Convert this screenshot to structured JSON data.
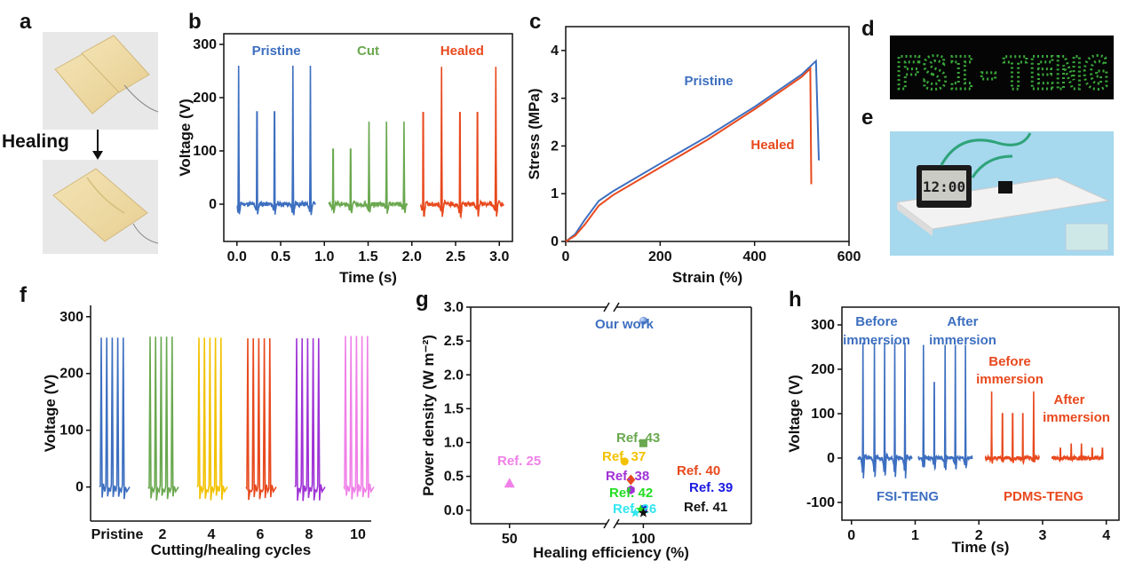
{
  "panels": {
    "a": "a",
    "b": "b",
    "c": "c",
    "d": "d",
    "e": "e",
    "f": "f",
    "g": "g",
    "h": "h"
  },
  "photos": {
    "a_arrow_label": "Healing",
    "d_display_text": "FSI-TENG",
    "d_led_color": "#3aa63a",
    "e_clock_text": "12:00"
  },
  "colors": {
    "blue": "#3d6fc0",
    "green": "#6aa84f",
    "red": "#e8491d",
    "orange": "#e8491d",
    "yellow": "#f2c200",
    "purple": "#a033d6",
    "pink": "#f080e8"
  },
  "chart_data": [
    {
      "id": "b",
      "type": "line",
      "xlabel": "Time (s)",
      "ylabel": "Voltage (V)",
      "xlim": [
        -0.15,
        3.15
      ],
      "ylim": [
        -70,
        320
      ],
      "xticks": [
        "0.0",
        "0.5",
        "1.0",
        "1.5",
        "2.0",
        "2.5",
        "3.0"
      ],
      "xtick_values": [
        0,
        0.5,
        1,
        1.5,
        2,
        2.5,
        3
      ],
      "yticks": [
        "0",
        "100",
        "200",
        "300"
      ],
      "ytick_values": [
        0,
        100,
        200,
        300
      ],
      "series": [
        {
          "name": "Pristine",
          "color": "#3d6fc0",
          "x_range": [
            0,
            0.9
          ],
          "peaks": [
            0.02,
            0.23,
            0.43,
            0.64,
            0.84
          ],
          "peak_value": 260,
          "neg_value": -25
        },
        {
          "name": "Cut",
          "color": "#6aa84f",
          "x_range": [
            1.05,
            1.95
          ],
          "peaks": [
            1.1,
            1.3,
            1.51,
            1.71,
            1.91
          ],
          "peak_value": 155,
          "neg_value": -22
        },
        {
          "name": "Healed",
          "color": "#e8491d",
          "x_range": [
            2.1,
            3.05
          ],
          "peaks": [
            2.13,
            2.34,
            2.55,
            2.75,
            2.96
          ],
          "peak_value": 258,
          "neg_value": -30
        }
      ]
    },
    {
      "id": "c",
      "type": "line",
      "xlabel": "Strain (%)",
      "ylabel": "Stress (MPa)",
      "xlim": [
        0,
        600
      ],
      "ylim": [
        0,
        4.5
      ],
      "xticks": [
        "0",
        "200",
        "400",
        "600"
      ],
      "xtick_values": [
        0,
        200,
        400,
        600
      ],
      "yticks": [
        "0",
        "1",
        "2",
        "3",
        "4"
      ],
      "ytick_values": [
        0,
        1,
        2,
        3,
        4
      ],
      "series": [
        {
          "name": "Pristine",
          "color": "#3d6fc0",
          "points": [
            [
              0,
              0
            ],
            [
              20,
              0.15
            ],
            [
              40,
              0.45
            ],
            [
              70,
              0.85
            ],
            [
              100,
              1.05
            ],
            [
              200,
              1.63
            ],
            [
              300,
              2.2
            ],
            [
              400,
              2.82
            ],
            [
              500,
              3.5
            ],
            [
              530,
              3.78
            ],
            [
              536,
              1.7
            ]
          ]
        },
        {
          "name": "Healed",
          "color": "#e8491d",
          "points": [
            [
              0,
              0
            ],
            [
              20,
              0.12
            ],
            [
              40,
              0.35
            ],
            [
              70,
              0.75
            ],
            [
              100,
              0.97
            ],
            [
              200,
              1.55
            ],
            [
              300,
              2.13
            ],
            [
              400,
              2.77
            ],
            [
              500,
              3.45
            ],
            [
              518,
              3.62
            ],
            [
              520,
              1.2
            ]
          ]
        }
      ]
    },
    {
      "id": "f",
      "type": "line",
      "xlabel": "Cutting/healing cycles",
      "ylabel": "Voltage (V)",
      "ylim": [
        -60,
        320
      ],
      "yticks": [
        "0",
        "100",
        "200",
        "300"
      ],
      "ytick_values": [
        0,
        100,
        200,
        300
      ],
      "categories": [
        "Pristine",
        "2",
        "4",
        "6",
        "8",
        "10"
      ],
      "series": [
        {
          "name": "Pristine",
          "color": "#3d6fc0",
          "peak_value": 263
        },
        {
          "name": "2",
          "color": "#6aa84f",
          "peak_value": 265
        },
        {
          "name": "4",
          "color": "#f2c200",
          "peak_value": 263
        },
        {
          "name": "6",
          "color": "#e8491d",
          "peak_value": 262
        },
        {
          "name": "8",
          "color": "#a033d6",
          "peak_value": 262
        },
        {
          "name": "10",
          "color": "#f080e8",
          "peak_value": 266
        }
      ]
    },
    {
      "id": "g",
      "type": "scatter",
      "xlabel": "Healing efficiency (%)",
      "ylabel": "Power density (W m⁻²)",
      "ylim": [
        -0.2,
        3.0
      ],
      "xticks": [
        "50",
        "100"
      ],
      "xtick_values": [
        50,
        100
      ],
      "yticks": [
        "0.0",
        "0.5",
        "1.0",
        "1.5",
        "2.0",
        "2.5",
        "3.0"
      ],
      "ytick_values": [
        0,
        0.5,
        1,
        1.5,
        2,
        2.5,
        3
      ],
      "axis_break": true,
      "points": [
        {
          "label": "Our work",
          "x": 100,
          "y": 2.8,
          "color": "#3d6fc0",
          "marker": "circle"
        },
        {
          "label": "Ref. 43",
          "x": 100,
          "y": 0.99,
          "color": "#6aa84f",
          "marker": "square"
        },
        {
          "label": "Ref. 37",
          "x": 97,
          "y": 0.72,
          "color": "#f2c200",
          "marker": "circle"
        },
        {
          "label": "Ref. 40",
          "x": 98,
          "y": 0.45,
          "color": "#e8491d",
          "marker": "diamond"
        },
        {
          "label": "Ref. 38",
          "x": 98,
          "y": 0.3,
          "color": "#a033d6",
          "marker": "hexagon"
        },
        {
          "label": "Ref. 39",
          "x": 100,
          "y": 0.02,
          "color": "#1a1ae0",
          "marker": "circle"
        },
        {
          "label": "Ref. 42",
          "x": 100,
          "y": 0.01,
          "color": "#22dd22",
          "marker": "star"
        },
        {
          "label": "Ref. 26",
          "x": 99,
          "y": 0.0,
          "color": "#33e6f0",
          "marker": "star"
        },
        {
          "label": "Ref. 41",
          "x": 100,
          "y": 0.0,
          "color": "#111111",
          "marker": "star"
        },
        {
          "label": "Ref. 25",
          "x": 50,
          "y": 0.4,
          "color": "#f080e8",
          "marker": "triangle"
        }
      ]
    },
    {
      "id": "h",
      "type": "line",
      "xlabel": "Time (s)",
      "ylabel": "Voltage (V)",
      "xlim": [
        -0.15,
        4.2
      ],
      "ylim": [
        -140,
        340
      ],
      "xticks": [
        "0",
        "1",
        "2",
        "3",
        "4"
      ],
      "xtick_values": [
        0,
        1,
        2,
        3,
        4
      ],
      "yticks": [
        "-100",
        "0",
        "100",
        "200",
        "300"
      ],
      "ytick_values": [
        -100,
        0,
        100,
        200,
        300
      ],
      "series": [
        {
          "name": "FSI-TENG Before immersion",
          "color": "#3d6fc0",
          "x_range": [
            0.1,
            0.95
          ],
          "peaks": [
            0.18,
            0.36,
            0.52,
            0.68,
            0.84
          ],
          "peak_value": 260,
          "neg_value": -60
        },
        {
          "name": "FSI-TENG After immersion",
          "color": "#3d6fc0",
          "x_range": [
            1.05,
            1.9
          ],
          "peaks": [
            1.13,
            1.3,
            1.47,
            1.63,
            1.79
          ],
          "peak_value": 255,
          "neg_value": -35
        },
        {
          "name": "PDMS-TENG Before immersion",
          "color": "#e8491d",
          "x_range": [
            2.1,
            2.95
          ],
          "peaks": [
            2.2,
            2.37,
            2.53,
            2.69,
            2.86
          ],
          "peak_value": 150,
          "neg_value": -12
        },
        {
          "name": "PDMS-TENG After immersion",
          "color": "#e8491d",
          "x_range": [
            3.15,
            3.95
          ],
          "peaks": [
            3.28,
            3.45,
            3.61,
            3.78,
            3.94
          ],
          "peak_value": 33,
          "neg_value": -5
        }
      ],
      "annotations": {
        "fsi_before": "Before",
        "fsi_before2": "immersion",
        "fsi_after": "After",
        "fsi_after2": "immersion",
        "pdms_before": "Before",
        "pdms_before2": "immersion",
        "pdms_after": "After",
        "pdms_after2": "immersion",
        "fsi_label": "FSI-TENG",
        "pdms_label": "PDMS-TENG"
      }
    }
  ]
}
